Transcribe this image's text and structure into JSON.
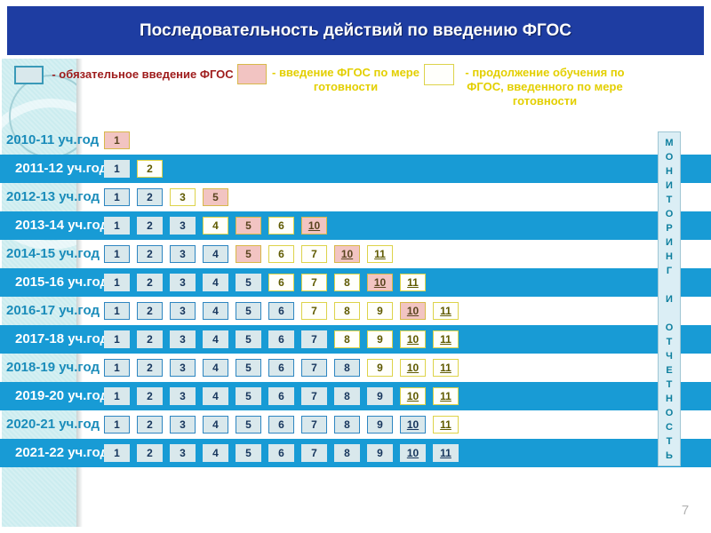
{
  "title": "Последовательность действий по введению ФГОС",
  "legend": [
    {
      "swatch": "mandatory",
      "label": "- обязательное введение ФГОС"
    },
    {
      "swatch": "ready",
      "label": "- введение ФГОС по мере готовности"
    },
    {
      "swatch": "continuation",
      "label": "- продолжение обучения по ФГОС, введенного по мере готовности"
    }
  ],
  "sidebar_text": "МОНИТОРИНГ И ОТЧЕТНОСТЬ",
  "page_number": "7",
  "colors": {
    "header_bg": "#1e3da2",
    "stripe_blue": "#189bd5",
    "sidebar_bg": "#cbecef",
    "mandatory_fill": "#d9e8ec",
    "mandatory_border": "#2e86c1",
    "ready_fill": "#f2c4c2",
    "ready_border": "#d8b84a",
    "continuation_fill": "#fffffb",
    "continuation_border": "#ddd34a",
    "legend_red": "#9e1b1b",
    "legend_yellow": "#e3cf00",
    "year_teal": "#1a8cba",
    "monitor_teal": "#0e7f9e"
  },
  "rows": [
    {
      "year": "2010-11 уч.год",
      "stripe": "light",
      "cells": [
        {
          "n": "1",
          "type": "ready"
        }
      ]
    },
    {
      "year": "2011-12 уч.год",
      "stripe": "blue",
      "cells": [
        {
          "n": "1",
          "type": "mandatory"
        },
        {
          "n": "2",
          "type": "continuation"
        }
      ]
    },
    {
      "year": "2012-13 уч.год",
      "stripe": "light",
      "cells": [
        {
          "n": "1",
          "type": "mandatory"
        },
        {
          "n": "2",
          "type": "mandatory"
        },
        {
          "n": "3",
          "type": "continuation"
        },
        {
          "n": "5",
          "type": "ready"
        }
      ]
    },
    {
      "year": "2013-14 уч.год",
      "stripe": "blue",
      "cells": [
        {
          "n": "1",
          "type": "mandatory"
        },
        {
          "n": "2",
          "type": "mandatory"
        },
        {
          "n": "3",
          "type": "mandatory"
        },
        {
          "n": "4",
          "type": "continuation"
        },
        {
          "n": "5",
          "type": "ready"
        },
        {
          "n": "6",
          "type": "continuation"
        },
        {
          "n": "10",
          "type": "ready"
        }
      ]
    },
    {
      "year": "2014-15 уч.год",
      "stripe": "light",
      "cells": [
        {
          "n": "1",
          "type": "mandatory"
        },
        {
          "n": "2",
          "type": "mandatory"
        },
        {
          "n": "3",
          "type": "mandatory"
        },
        {
          "n": "4",
          "type": "mandatory"
        },
        {
          "n": "5",
          "type": "ready"
        },
        {
          "n": "6",
          "type": "continuation"
        },
        {
          "n": "7",
          "type": "continuation"
        },
        {
          "n": "10",
          "type": "ready"
        },
        {
          "n": "11",
          "type": "continuation"
        }
      ]
    },
    {
      "year": "2015-16 уч.год",
      "stripe": "blue",
      "cells": [
        {
          "n": "1",
          "type": "mandatory"
        },
        {
          "n": "2",
          "type": "mandatory"
        },
        {
          "n": "3",
          "type": "mandatory"
        },
        {
          "n": "4",
          "type": "mandatory"
        },
        {
          "n": "5",
          "type": "mandatory"
        },
        {
          "n": "6",
          "type": "continuation"
        },
        {
          "n": "7",
          "type": "continuation"
        },
        {
          "n": "8",
          "type": "continuation"
        },
        {
          "n": "10",
          "type": "ready"
        },
        {
          "n": "11",
          "type": "continuation"
        }
      ]
    },
    {
      "year": "2016-17 уч.год",
      "stripe": "light",
      "cells": [
        {
          "n": "1",
          "type": "mandatory"
        },
        {
          "n": "2",
          "type": "mandatory"
        },
        {
          "n": "3",
          "type": "mandatory"
        },
        {
          "n": "4",
          "type": "mandatory"
        },
        {
          "n": "5",
          "type": "mandatory"
        },
        {
          "n": "6",
          "type": "mandatory"
        },
        {
          "n": "7",
          "type": "continuation"
        },
        {
          "n": "8",
          "type": "continuation"
        },
        {
          "n": "9",
          "type": "continuation"
        },
        {
          "n": "10",
          "type": "ready"
        },
        {
          "n": "11",
          "type": "continuation"
        }
      ]
    },
    {
      "year": "2017-18 уч.год",
      "stripe": "blue",
      "cells": [
        {
          "n": "1",
          "type": "mandatory"
        },
        {
          "n": "2",
          "type": "mandatory"
        },
        {
          "n": "3",
          "type": "mandatory"
        },
        {
          "n": "4",
          "type": "mandatory"
        },
        {
          "n": "5",
          "type": "mandatory"
        },
        {
          "n": "6",
          "type": "mandatory"
        },
        {
          "n": "7",
          "type": "mandatory"
        },
        {
          "n": "8",
          "type": "continuation"
        },
        {
          "n": "9",
          "type": "continuation"
        },
        {
          "n": "10",
          "type": "continuation"
        },
        {
          "n": "11",
          "type": "continuation"
        }
      ]
    },
    {
      "year": "2018-19 уч.год",
      "stripe": "light",
      "cells": [
        {
          "n": "1",
          "type": "mandatory"
        },
        {
          "n": "2",
          "type": "mandatory"
        },
        {
          "n": "3",
          "type": "mandatory"
        },
        {
          "n": "4",
          "type": "mandatory"
        },
        {
          "n": "5",
          "type": "mandatory"
        },
        {
          "n": "6",
          "type": "mandatory"
        },
        {
          "n": "7",
          "type": "mandatory"
        },
        {
          "n": "8",
          "type": "mandatory"
        },
        {
          "n": "9",
          "type": "continuation"
        },
        {
          "n": "10",
          "type": "continuation"
        },
        {
          "n": "11",
          "type": "continuation"
        }
      ]
    },
    {
      "year": "2019-20 уч.год",
      "stripe": "blue",
      "cells": [
        {
          "n": "1",
          "type": "mandatory"
        },
        {
          "n": "2",
          "type": "mandatory"
        },
        {
          "n": "3",
          "type": "mandatory"
        },
        {
          "n": "4",
          "type": "mandatory"
        },
        {
          "n": "5",
          "type": "mandatory"
        },
        {
          "n": "6",
          "type": "mandatory"
        },
        {
          "n": "7",
          "type": "mandatory"
        },
        {
          "n": "8",
          "type": "mandatory"
        },
        {
          "n": "9",
          "type": "mandatory"
        },
        {
          "n": "10",
          "type": "continuation"
        },
        {
          "n": "11",
          "type": "continuation"
        }
      ]
    },
    {
      "year": "2020-21 уч.год",
      "stripe": "light",
      "cells": [
        {
          "n": "1",
          "type": "mandatory"
        },
        {
          "n": "2",
          "type": "mandatory"
        },
        {
          "n": "3",
          "type": "mandatory"
        },
        {
          "n": "4",
          "type": "mandatory"
        },
        {
          "n": "5",
          "type": "mandatory"
        },
        {
          "n": "6",
          "type": "mandatory"
        },
        {
          "n": "7",
          "type": "mandatory"
        },
        {
          "n": "8",
          "type": "mandatory"
        },
        {
          "n": "9",
          "type": "mandatory"
        },
        {
          "n": "10",
          "type": "mandatory"
        },
        {
          "n": "11",
          "type": "continuation"
        }
      ]
    },
    {
      "year": "2021-22 уч.год",
      "stripe": "blue",
      "cells": [
        {
          "n": "1",
          "type": "mandatory"
        },
        {
          "n": "2",
          "type": "mandatory"
        },
        {
          "n": "3",
          "type": "mandatory"
        },
        {
          "n": "4",
          "type": "mandatory"
        },
        {
          "n": "5",
          "type": "mandatory"
        },
        {
          "n": "6",
          "type": "mandatory"
        },
        {
          "n": "7",
          "type": "mandatory"
        },
        {
          "n": "8",
          "type": "mandatory"
        },
        {
          "n": "9",
          "type": "mandatory"
        },
        {
          "n": "10",
          "type": "mandatory"
        },
        {
          "n": "11",
          "type": "mandatory"
        }
      ]
    }
  ]
}
